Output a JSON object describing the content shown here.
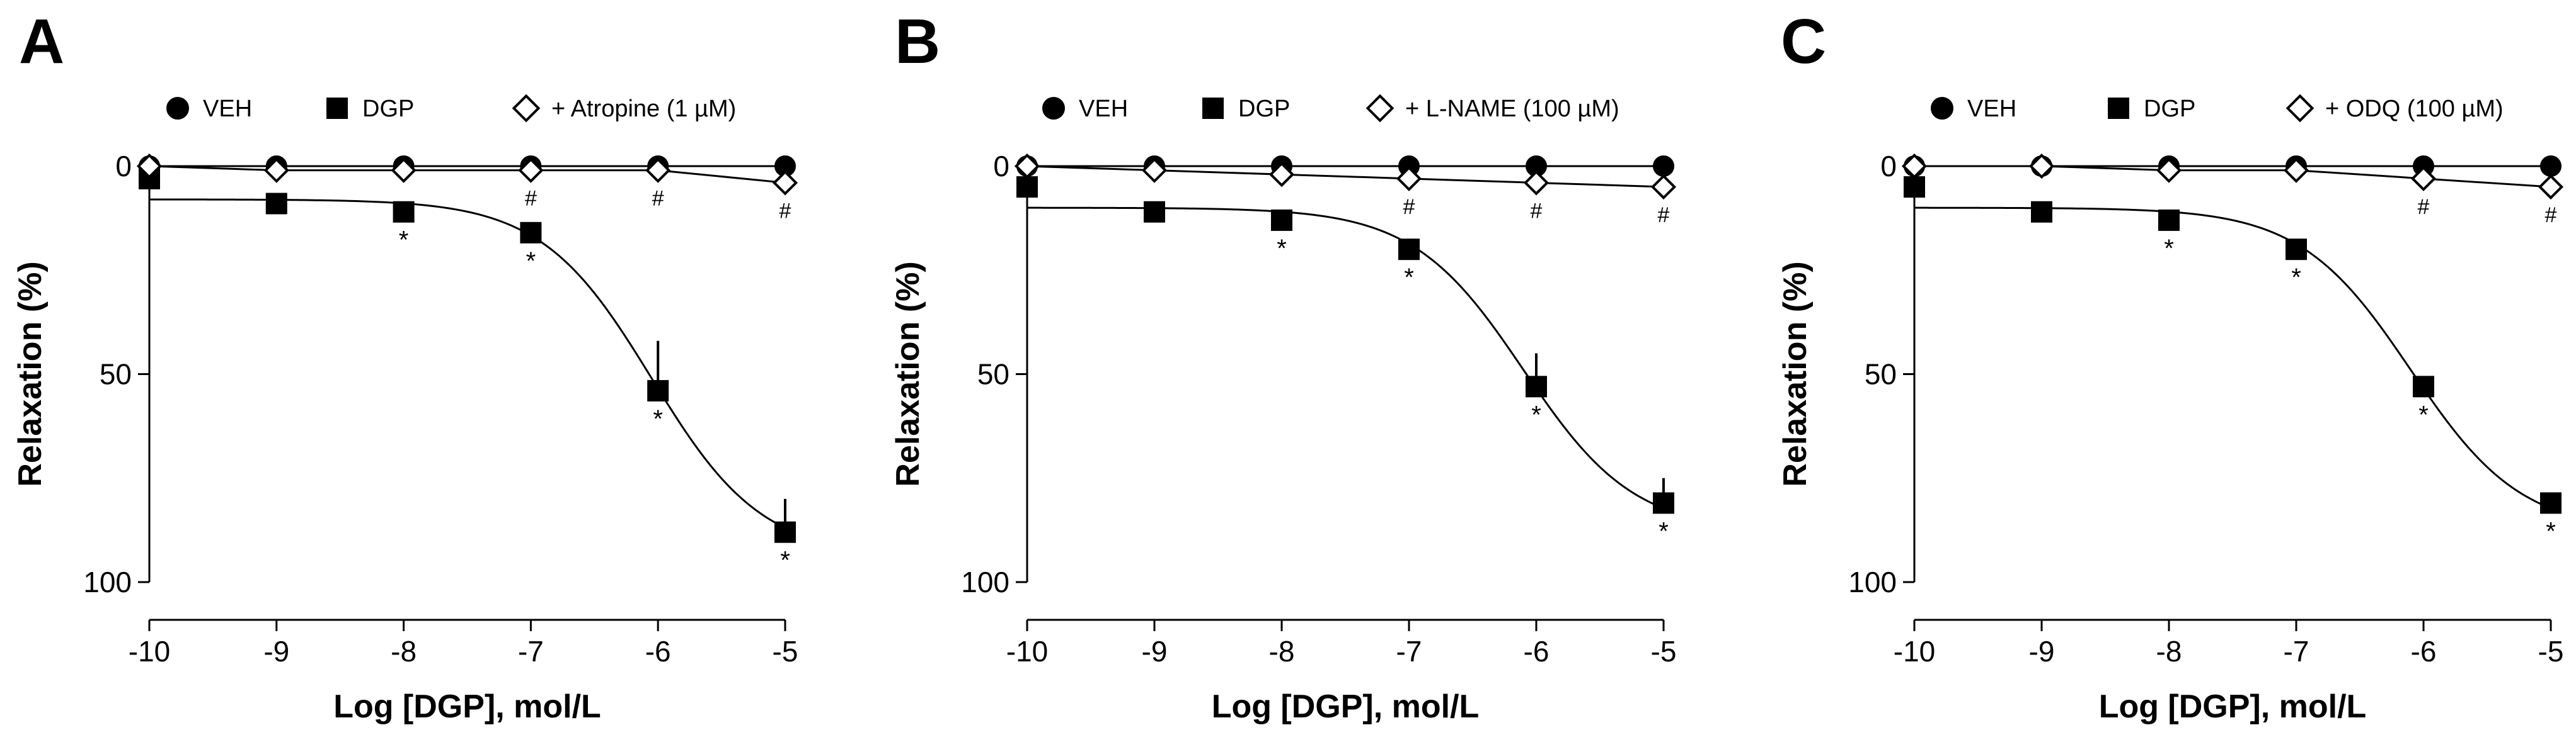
{
  "figure": {
    "colors": {
      "ink": "#000000",
      "background": "#ffffff",
      "open_marker_fill": "#ffffff"
    },
    "chart_data": [
      {
        "type": "line",
        "panel": "A",
        "xlabel": "Log [DGP], mol/L",
        "ylabel": "Relaxation (%)",
        "x": [
          -10,
          -9,
          -8,
          -7,
          -6,
          -5
        ],
        "x_tick_labels": [
          "-10",
          "-9",
          "-8",
          "-7",
          "-6",
          "-5"
        ],
        "y_ticks": [
          0,
          50,
          100
        ],
        "y_tick_labels": [
          "0",
          "50",
          "100"
        ],
        "xlim": [
          -10,
          -5
        ],
        "ylim": [
          0,
          100
        ],
        "y_inverted": true,
        "legend": [
          {
            "label": "VEH",
            "marker": "circle"
          },
          {
            "label": "DGP",
            "marker": "square"
          },
          {
            "label": "+ Atropine (1 µM)",
            "marker": "diamond"
          }
        ],
        "series": [
          {
            "name": "VEH",
            "marker": "circle",
            "values": [
              0,
              0,
              0,
              0,
              0,
              0
            ],
            "error": [
              0,
              0,
              0,
              0,
              0,
              0
            ],
            "fit": {
              "top": 0,
              "bottom": 0,
              "logEC50": -6,
              "hill": 1
            }
          },
          {
            "name": "DGP",
            "marker": "square",
            "values": [
              3,
              9,
              11,
              16,
              54,
              88
            ],
            "error": [
              0,
              0,
              2,
              2,
              12,
              8
            ],
            "fit": {
              "top": 8,
              "bottom": 94,
              "logEC50": -6.05,
              "hill": 1
            }
          },
          {
            "name": "+ Atropine (1 µM)",
            "marker": "diamond",
            "values": [
              0,
              1,
              1,
              1,
              1,
              4
            ],
            "error": [
              0,
              0,
              0,
              0,
              0,
              0
            ],
            "fit": {
              "type": "linear"
            }
          }
        ],
        "annotations": [
          {
            "x": -8,
            "y": 11,
            "text": "*"
          },
          {
            "x": -7,
            "y": 16,
            "text": "*"
          },
          {
            "x": -6,
            "y": 54,
            "text": "*"
          },
          {
            "x": -5,
            "y": 88,
            "text": "*"
          },
          {
            "x": -7,
            "y": 1,
            "text": "#"
          },
          {
            "x": -6,
            "y": 1,
            "text": "#"
          },
          {
            "x": -5,
            "y": 4,
            "text": "#"
          }
        ]
      },
      {
        "type": "line",
        "panel": "B",
        "xlabel": "Log [DGP], mol/L",
        "ylabel": "Relaxation (%)",
        "x": [
          -10,
          -9,
          -8,
          -7,
          -6,
          -5
        ],
        "x_tick_labels": [
          "-10",
          "-9",
          "-8",
          "-7",
          "-6",
          "-5"
        ],
        "y_ticks": [
          0,
          50,
          100
        ],
        "y_tick_labels": [
          "0",
          "50",
          "100"
        ],
        "xlim": [
          -10,
          -5
        ],
        "ylim": [
          0,
          100
        ],
        "y_inverted": true,
        "legend": [
          {
            "label": "VEH",
            "marker": "circle"
          },
          {
            "label": "DGP",
            "marker": "square"
          },
          {
            "label": "+ L-NAME (100 µM)",
            "marker": "diamond"
          }
        ],
        "series": [
          {
            "name": "VEH",
            "marker": "circle",
            "values": [
              0,
              0,
              0,
              0,
              0,
              0
            ],
            "error": [
              0,
              0,
              0,
              0,
              0,
              0
            ],
            "fit": {
              "top": 0,
              "bottom": 0,
              "logEC50": -6,
              "hill": 1
            }
          },
          {
            "name": "DGP",
            "marker": "square",
            "values": [
              5,
              11,
              13,
              20,
              53,
              81
            ],
            "error": [
              0,
              0,
              0,
              0,
              8,
              6
            ],
            "fit": {
              "top": 10,
              "bottom": 88,
              "logEC50": -6.1,
              "hill": 1
            }
          },
          {
            "name": "+ L-NAME (100 µM)",
            "marker": "diamond",
            "values": [
              0,
              1,
              2,
              3,
              4,
              5
            ],
            "error": [
              0,
              0,
              0,
              0,
              0,
              0
            ],
            "fit": {
              "type": "linear"
            }
          }
        ],
        "annotations": [
          {
            "x": -8,
            "y": 13,
            "text": "*"
          },
          {
            "x": -7,
            "y": 20,
            "text": "*"
          },
          {
            "x": -6,
            "y": 53,
            "text": "*"
          },
          {
            "x": -5,
            "y": 81,
            "text": "*"
          },
          {
            "x": -7,
            "y": 3,
            "text": "#"
          },
          {
            "x": -6,
            "y": 4,
            "text": "#"
          },
          {
            "x": -5,
            "y": 5,
            "text": "#"
          }
        ]
      },
      {
        "type": "line",
        "panel": "C",
        "xlabel": "Log [DGP], mol/L",
        "ylabel": "Relaxation (%)",
        "x": [
          -10,
          -9,
          -8,
          -7,
          -6,
          -5
        ],
        "x_tick_labels": [
          "-10",
          "-9",
          "-8",
          "-7",
          "-6",
          "-5"
        ],
        "y_ticks": [
          0,
          50,
          100
        ],
        "y_tick_labels": [
          "0",
          "50",
          "100"
        ],
        "xlim": [
          -10,
          -5
        ],
        "ylim": [
          0,
          100
        ],
        "y_inverted": true,
        "legend": [
          {
            "label": "VEH",
            "marker": "circle"
          },
          {
            "label": "DGP",
            "marker": "square"
          },
          {
            "label": "+ ODQ (100 µM)",
            "marker": "diamond"
          }
        ],
        "series": [
          {
            "name": "VEH",
            "marker": "circle",
            "values": [
              0,
              0,
              0,
              0,
              0,
              0
            ],
            "error": [
              0,
              0,
              0,
              0,
              0,
              0
            ],
            "fit": {
              "top": 0,
              "bottom": 0,
              "logEC50": -6,
              "hill": 1
            }
          },
          {
            "name": "DGP",
            "marker": "square",
            "values": [
              5,
              11,
              13,
              20,
              53,
              81
            ],
            "error": [
              0,
              0,
              0,
              0,
              0,
              0
            ],
            "fit": {
              "top": 10,
              "bottom": 88,
              "logEC50": -6.1,
              "hill": 1
            }
          },
          {
            "name": "+ ODQ (100 µM)",
            "marker": "diamond",
            "values": [
              0,
              0,
              1,
              1,
              3,
              5
            ],
            "error": [
              0,
              0,
              0,
              0,
              0,
              0
            ],
            "fit": {
              "type": "linear"
            }
          }
        ],
        "annotations": [
          {
            "x": -8,
            "y": 13,
            "text": "*"
          },
          {
            "x": -7,
            "y": 20,
            "text": "*"
          },
          {
            "x": -6,
            "y": 53,
            "text": "*"
          },
          {
            "x": -5,
            "y": 81,
            "text": "*"
          },
          {
            "x": -6,
            "y": 3,
            "text": "#"
          },
          {
            "x": -5,
            "y": 5,
            "text": "#"
          }
        ]
      }
    ]
  }
}
